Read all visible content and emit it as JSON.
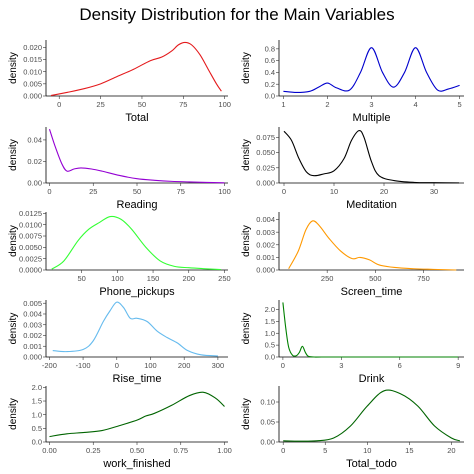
{
  "chart_data": {
    "title": "Density Distribution for the Main Variables",
    "panels": [
      {
        "type": "line",
        "xlabel": "Total",
        "ylabel": "density",
        "color": "#e41a1c",
        "xlim": [
          -8,
          102
        ],
        "ylim": [
          0,
          0.023
        ],
        "xticks": [
          0,
          25,
          50,
          75,
          100
        ],
        "yticks": [
          0.0,
          0.005,
          0.01,
          0.015,
          0.02
        ],
        "xtick_labels": [
          "0",
          "25",
          "50",
          "75",
          "100"
        ],
        "ytick_labels": [
          "0.000",
          "0.005",
          "0.010",
          "0.015",
          "0.020"
        ],
        "x": [
          -5,
          5,
          15,
          25,
          35,
          45,
          55,
          62,
          68,
          72,
          76,
          80,
          85,
          90,
          95,
          98
        ],
        "y": [
          0.0002,
          0.0015,
          0.003,
          0.005,
          0.008,
          0.011,
          0.0145,
          0.016,
          0.0185,
          0.021,
          0.022,
          0.021,
          0.017,
          0.011,
          0.005,
          0.002
        ]
      },
      {
        "type": "line",
        "xlabel": "Multiple",
        "ylabel": "density",
        "color": "#0000cd",
        "xlim": [
          0.9,
          5.1
        ],
        "ylim": [
          0,
          0.95
        ],
        "xticks": [
          1,
          2,
          3,
          4,
          5
        ],
        "yticks": [
          0.0,
          0.2,
          0.4,
          0.6,
          0.8
        ],
        "xtick_labels": [
          "1",
          "2",
          "3",
          "4",
          "5"
        ],
        "ytick_labels": [
          "0.0",
          "0.2",
          "0.4",
          "0.6",
          "0.8"
        ],
        "x": [
          1.0,
          1.3,
          1.6,
          1.8,
          2.0,
          2.2,
          2.5,
          2.75,
          3.0,
          3.25,
          3.5,
          3.75,
          4.0,
          4.25,
          4.5,
          4.75,
          5.0
        ],
        "y": [
          0.08,
          0.06,
          0.08,
          0.15,
          0.22,
          0.14,
          0.1,
          0.4,
          0.82,
          0.4,
          0.15,
          0.4,
          0.82,
          0.4,
          0.1,
          0.12,
          0.18
        ]
      },
      {
        "type": "line",
        "xlabel": "Reading",
        "ylabel": "density",
        "color": "#9400d3",
        "xlim": [
          -2,
          102
        ],
        "ylim": [
          0,
          0.052
        ],
        "xticks": [
          0,
          25,
          50,
          75,
          100
        ],
        "yticks": [
          0.0,
          0.02,
          0.04
        ],
        "xtick_labels": [
          "0",
          "25",
          "50",
          "75",
          "100"
        ],
        "ytick_labels": [
          "0.00",
          "0.02",
          "0.04"
        ],
        "x": [
          0,
          3,
          7,
          10,
          14,
          18,
          24,
          30,
          40,
          50,
          60,
          70,
          80,
          90,
          100
        ],
        "y": [
          0.05,
          0.035,
          0.018,
          0.011,
          0.013,
          0.014,
          0.013,
          0.011,
          0.007,
          0.004,
          0.0025,
          0.0015,
          0.001,
          0.0005,
          0.0002
        ]
      },
      {
        "type": "line",
        "xlabel": "Meditation",
        "ylabel": "density",
        "color": "#000000",
        "xlim": [
          -1,
          36
        ],
        "ylim": [
          0,
          0.092
        ],
        "xticks": [
          0,
          10,
          20,
          30
        ],
        "yticks": [
          0.0,
          0.025,
          0.05,
          0.075
        ],
        "xtick_labels": [
          "0",
          "10",
          "20",
          "30"
        ],
        "ytick_labels": [
          "0.000",
          "0.025",
          "0.050",
          "0.075"
        ],
        "x": [
          0,
          1.5,
          3,
          4.5,
          6,
          8,
          10,
          12,
          13.5,
          15,
          16,
          17.5,
          19,
          22,
          26,
          30,
          35
        ],
        "y": [
          0.085,
          0.07,
          0.04,
          0.018,
          0.012,
          0.015,
          0.02,
          0.04,
          0.07,
          0.086,
          0.075,
          0.035,
          0.012,
          0.004,
          0.001,
          0.0005,
          0.0002
        ]
      },
      {
        "type": "line",
        "xlabel": "Phone_pickups",
        "ylabel": "density",
        "color": "#33ff33",
        "xlim": [
          0,
          255
        ],
        "ylim": [
          0,
          0.0128
        ],
        "xticks": [
          50,
          100,
          150,
          200,
          250
        ],
        "yticks": [
          0.0,
          0.0025,
          0.005,
          0.0075,
          0.01,
          0.0125
        ],
        "xtick_labels": [
          "50",
          "100",
          "150",
          "200",
          "250"
        ],
        "ytick_labels": [
          "0.0000",
          "0.0025",
          "0.0050",
          "0.0075",
          "0.0100",
          "0.0125"
        ],
        "x": [
          8,
          25,
          45,
          60,
          75,
          90,
          105,
          120,
          140,
          160,
          180,
          200,
          220,
          245
        ],
        "y": [
          0.0002,
          0.002,
          0.0065,
          0.009,
          0.0105,
          0.0118,
          0.0112,
          0.009,
          0.005,
          0.002,
          0.0008,
          0.0005,
          0.0003,
          0.0001
        ]
      },
      {
        "type": "line",
        "xlabel": "Screen_time",
        "ylabel": "density",
        "color": "#ff9900",
        "xlim": [
          0,
          960
        ],
        "ylim": [
          0,
          0.0046
        ],
        "xticks": [
          250,
          500,
          750
        ],
        "yticks": [
          0.0,
          0.001,
          0.002,
          0.003,
          0.004
        ],
        "xtick_labels": [
          "250",
          "500",
          "750"
        ],
        "ytick_labels": [
          "0.000",
          "0.001",
          "0.002",
          "0.003",
          "0.004"
        ],
        "x": [
          50,
          100,
          140,
          175,
          210,
          260,
          320,
          380,
          420,
          470,
          520,
          600,
          700,
          800,
          920
        ],
        "y": [
          0.0001,
          0.0015,
          0.0032,
          0.0039,
          0.0035,
          0.0025,
          0.0015,
          0.0009,
          0.001,
          0.0008,
          0.0004,
          0.0002,
          0.0001,
          5e-05,
          0.0
        ]
      },
      {
        "type": "line",
        "xlabel": "Rise_time",
        "ylabel": "density",
        "color": "#66bbee",
        "xlim": [
          -210,
          330
        ],
        "ylim": [
          0,
          0.0053
        ],
        "xticks": [
          -200,
          -100,
          0,
          100,
          200,
          300
        ],
        "yticks": [
          0.0,
          0.001,
          0.002,
          0.003,
          0.004,
          0.005
        ],
        "xtick_labels": [
          "-200",
          "-100",
          "0",
          "100",
          "200",
          "300"
        ],
        "ytick_labels": [
          "0.000",
          "0.001",
          "0.002",
          "0.003",
          "0.004",
          "0.005"
        ],
        "x": [
          -190,
          -150,
          -100,
          -70,
          -40,
          -20,
          0,
          20,
          40,
          60,
          90,
          120,
          150,
          180,
          210,
          250,
          300
        ],
        "y": [
          0.0006,
          0.0005,
          0.0007,
          0.0015,
          0.0033,
          0.0043,
          0.0051,
          0.0046,
          0.0036,
          0.0036,
          0.0033,
          0.0024,
          0.0018,
          0.0013,
          0.0006,
          0.0002,
          0.0001
        ]
      },
      {
        "type": "line",
        "xlabel": "Drink",
        "ylabel": "density",
        "color": "#008000",
        "xlim": [
          -0.2,
          9.3
        ],
        "ylim": [
          0,
          2.4
        ],
        "xticks": [
          0,
          3,
          6,
          9
        ],
        "yticks": [
          0.0,
          0.5,
          1.0,
          1.5,
          2.0
        ],
        "xtick_labels": [
          "0",
          "3",
          "6",
          "9"
        ],
        "ytick_labels": [
          "0.0",
          "0.5",
          "1.0",
          "1.5",
          "2.0"
        ],
        "x": [
          0,
          0.15,
          0.3,
          0.5,
          0.7,
          0.85,
          1.0,
          1.15,
          1.3,
          1.6,
          2,
          4,
          6,
          9
        ],
        "y": [
          2.3,
          1.2,
          0.4,
          0.07,
          0.06,
          0.2,
          0.45,
          0.2,
          0.03,
          0.0,
          0.0,
          0.0,
          0.0,
          0.0
        ]
      },
      {
        "type": "line",
        "xlabel": "work_finished",
        "ylabel": "density",
        "color": "#006400",
        "xlim": [
          -0.02,
          1.02
        ],
        "ylim": [
          0,
          2.05
        ],
        "xticks": [
          0.0,
          0.25,
          0.5,
          0.75,
          1.0
        ],
        "yticks": [
          0.0,
          0.5,
          1.0,
          1.5,
          2.0
        ],
        "xtick_labels": [
          "0.00",
          "0.25",
          "0.50",
          "0.75",
          "1.00"
        ],
        "ytick_labels": [
          "0.0",
          "0.5",
          "1.0",
          "1.5",
          "2.0"
        ],
        "x": [
          0.0,
          0.1,
          0.2,
          0.3,
          0.4,
          0.5,
          0.55,
          0.6,
          0.7,
          0.8,
          0.88,
          0.95,
          1.0
        ],
        "y": [
          0.2,
          0.3,
          0.35,
          0.42,
          0.6,
          0.8,
          0.95,
          1.05,
          1.35,
          1.7,
          1.82,
          1.6,
          1.3
        ]
      },
      {
        "type": "line",
        "xlabel": "Total_todo",
        "ylabel": "density",
        "color": "#006400",
        "xlim": [
          -0.5,
          21.5
        ],
        "ylim": [
          0,
          0.14
        ],
        "xticks": [
          0,
          5,
          10,
          15,
          20
        ],
        "yticks": [
          0.0,
          0.05,
          0.1
        ],
        "xtick_labels": [
          "0",
          "5",
          "10",
          "15",
          "20"
        ],
        "ytick_labels": [
          "0.00",
          "0.05",
          "0.10"
        ],
        "x": [
          0,
          2,
          4,
          6,
          8,
          10,
          12,
          14,
          16,
          18,
          20,
          21
        ],
        "y": [
          0.003,
          0.002,
          0.003,
          0.01,
          0.04,
          0.09,
          0.128,
          0.12,
          0.09,
          0.04,
          0.01,
          0.003
        ]
      }
    ]
  }
}
